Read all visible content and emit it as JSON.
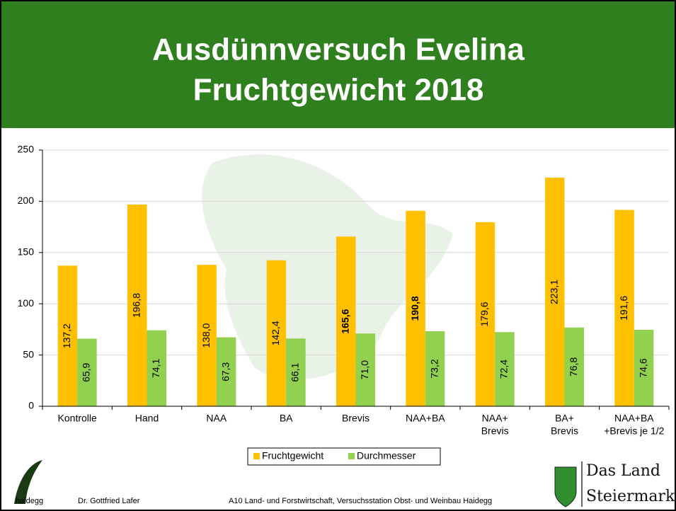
{
  "chart_data": {
    "type": "bar",
    "title": [
      "Ausdünnversuch Evelina",
      "Fruchtgewicht 2018"
    ],
    "categories": [
      [
        "Kontrolle"
      ],
      [
        "Hand"
      ],
      [
        "NAA"
      ],
      [
        "BA"
      ],
      [
        "Brevis"
      ],
      [
        "NAA+BA"
      ],
      [
        "NAA+",
        "Brevis"
      ],
      [
        "BA+",
        "Brevis"
      ],
      [
        "NAA+BA",
        "+Brevis je 1/2"
      ]
    ],
    "series": [
      {
        "name": "Fruchtgewicht",
        "color": "#FFC000",
        "values": [
          137.2,
          196.8,
          138.0,
          142.4,
          165.6,
          190.8,
          179.6,
          223.1,
          191.6
        ],
        "value_labels": [
          "137,2",
          "196,8",
          "138,0",
          "142,4",
          "165,6",
          "190,8",
          "179,6",
          "223,1",
          "191,6"
        ],
        "bold_labels": [
          false,
          false,
          false,
          false,
          true,
          true,
          false,
          false,
          false
        ]
      },
      {
        "name": "Durchmesser",
        "color": "#92D050",
        "values": [
          65.9,
          74.1,
          67.3,
          66.1,
          71.0,
          73.2,
          72.4,
          76.8,
          74.6
        ],
        "value_labels": [
          "65,9",
          "74,1",
          "67,3",
          "66,1",
          "71,0",
          "73,2",
          "72,4",
          "76,8",
          "74,6"
        ],
        "bold_labels": [
          false,
          false,
          false,
          false,
          false,
          false,
          false,
          false,
          false
        ]
      }
    ],
    "ylim": [
      0,
      250
    ],
    "yticks": [
      0,
      50,
      100,
      150,
      200,
      250
    ],
    "grid": true,
    "legend": "bottom"
  },
  "footer": {
    "logo_text": "haidegg",
    "author": "Dr. Gottfried Lafer",
    "institution": "A10 Land- und Forstwirtschaft, Versuchsstation Obst- und Weinbau Haidegg",
    "brand": [
      "Das Land",
      "Steiermark"
    ]
  }
}
